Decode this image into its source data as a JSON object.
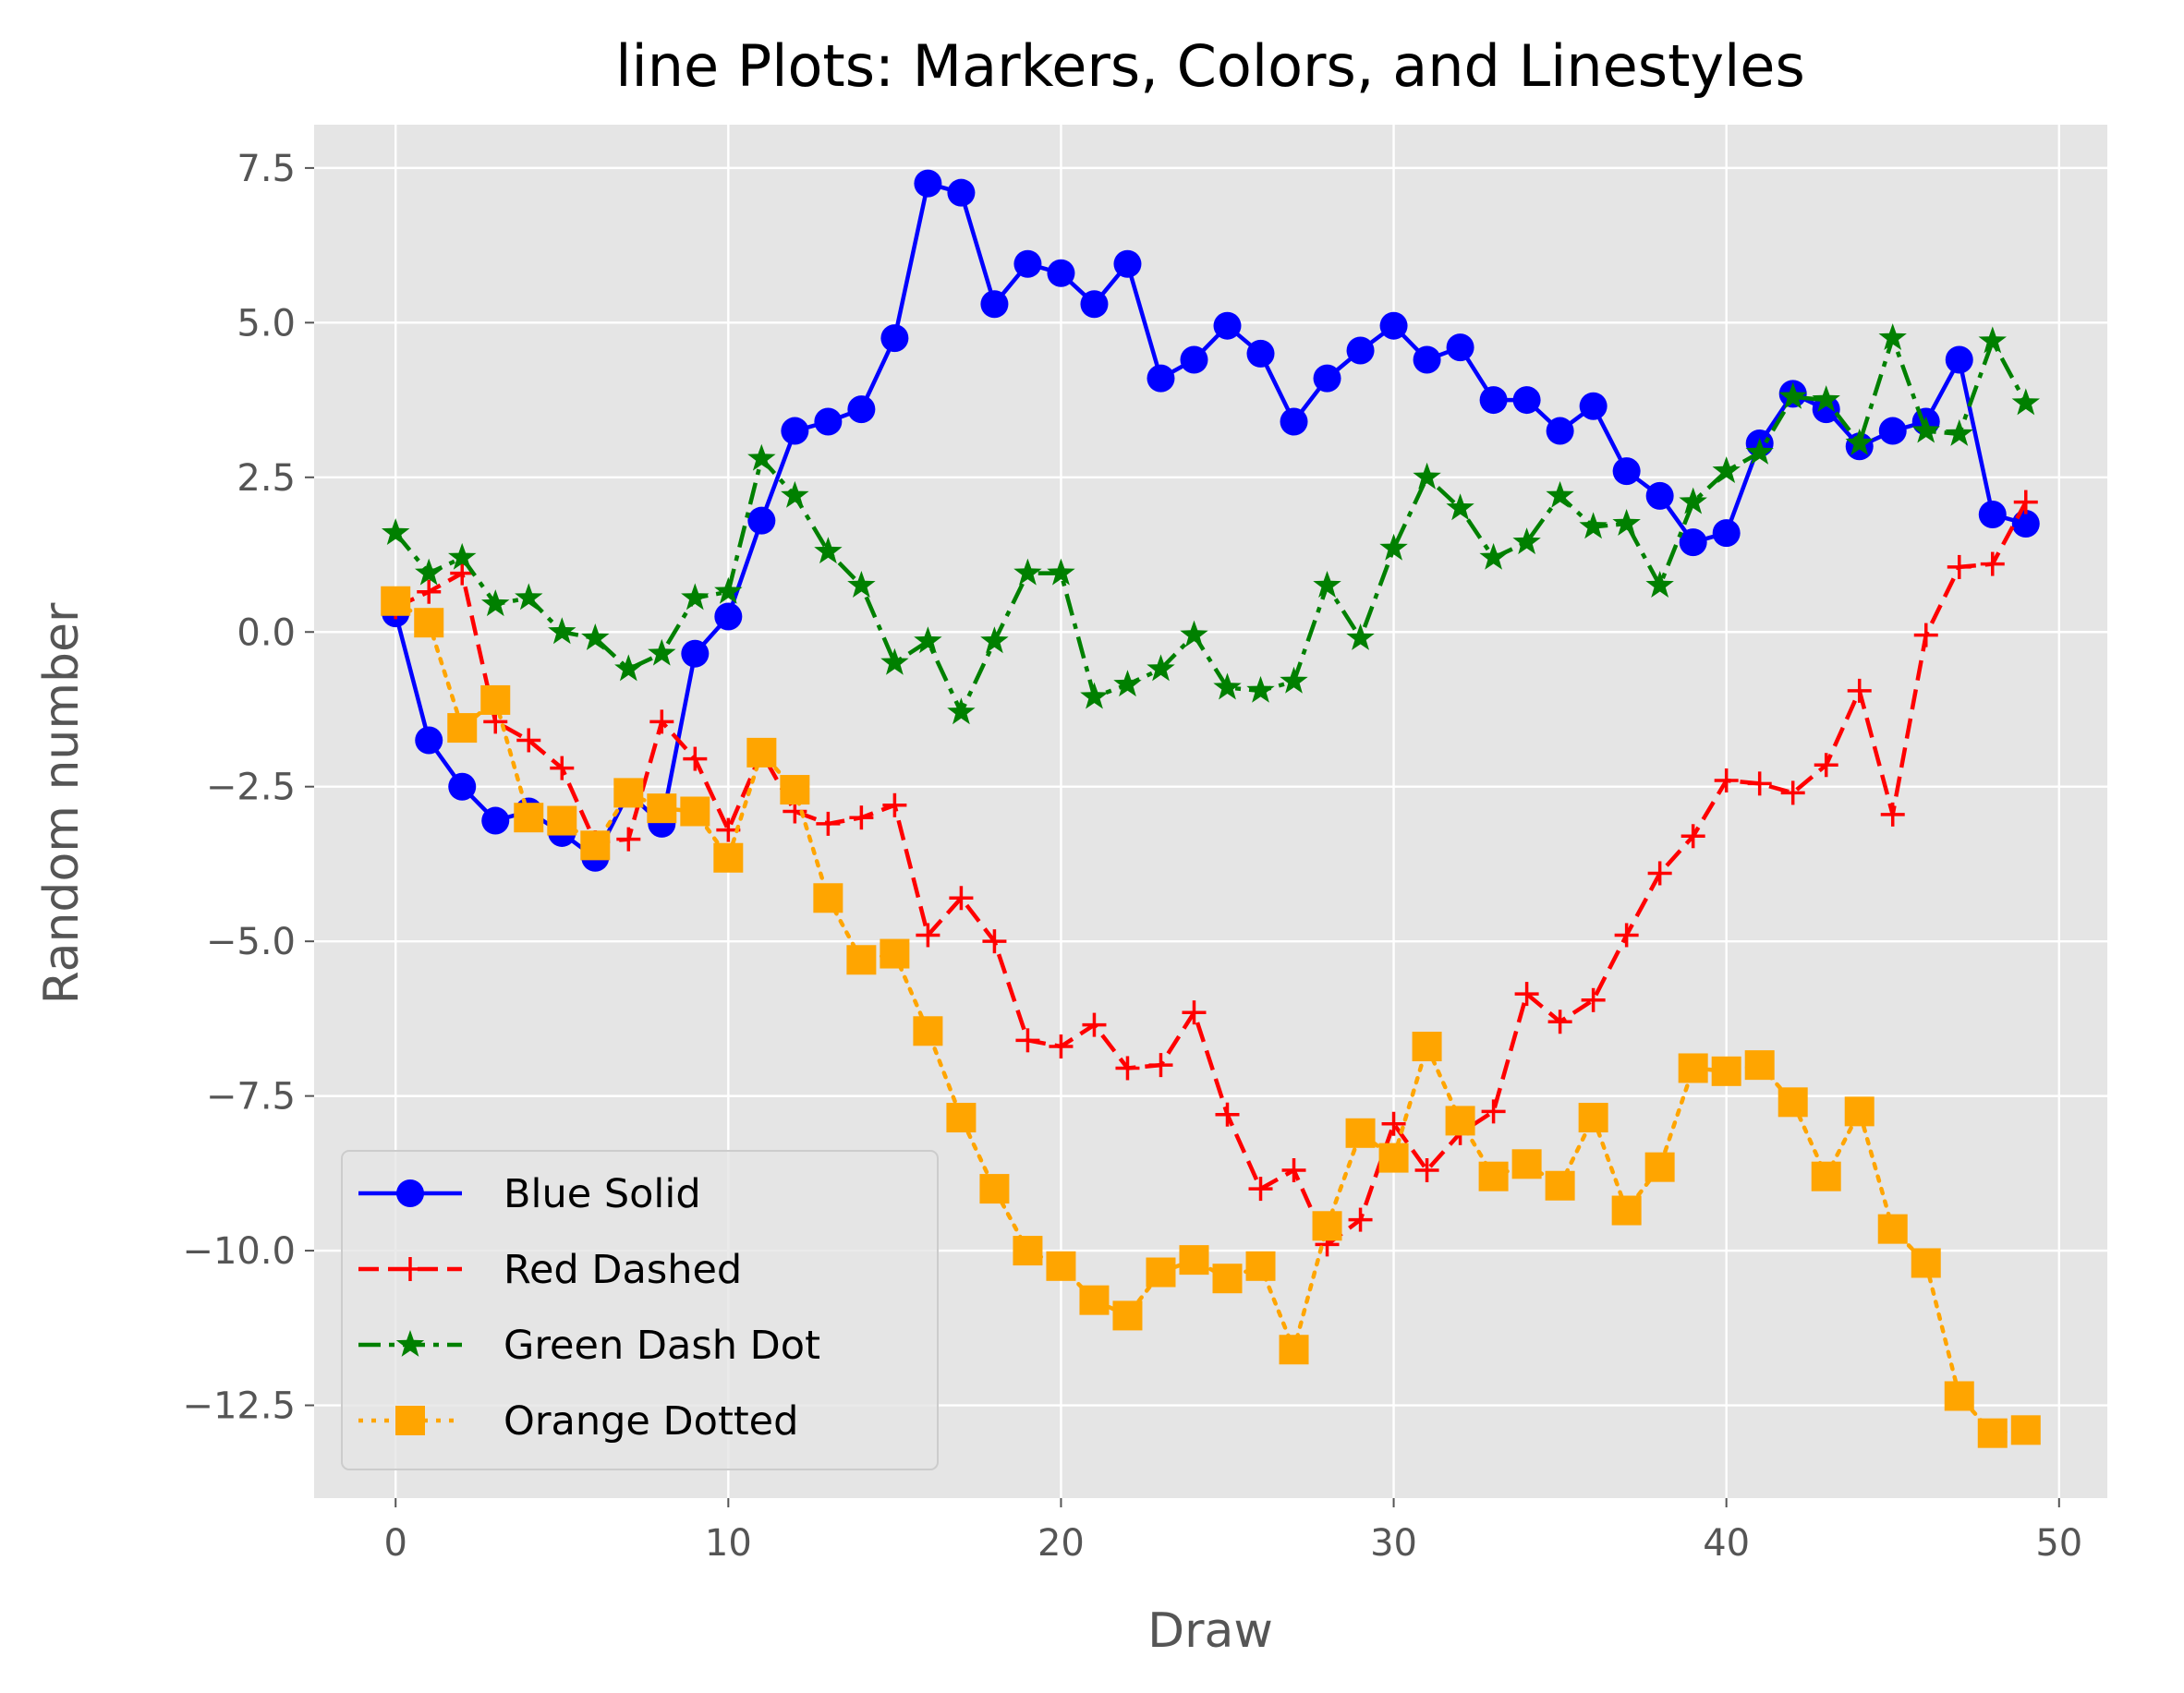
{
  "chart_data": {
    "type": "line",
    "title": "line Plots: Markers, Colors, and Linestyles",
    "xlabel": "Draw",
    "ylabel": "Random number",
    "xlim": [
      -2.45,
      51.45
    ],
    "ylim": [
      -14.0,
      8.2
    ],
    "xticks": [
      0,
      10,
      20,
      30,
      40,
      50
    ],
    "xtick_labels": [
      "0",
      "10",
      "20",
      "30",
      "40",
      "50"
    ],
    "yticks": [
      7.5,
      5.0,
      2.5,
      0.0,
      -2.5,
      -5.0,
      -7.5,
      -10.0,
      -12.5
    ],
    "ytick_labels": [
      "7.5",
      "5.0",
      "2.5",
      "0.0",
      "−2.5",
      "−5.0",
      "−7.5",
      "−10.0",
      "−12.5"
    ],
    "grid": true,
    "legend_position": "lower-left",
    "x": [
      0,
      1,
      2,
      3,
      4,
      5,
      6,
      7,
      8,
      9,
      10,
      11,
      12,
      13,
      14,
      15,
      16,
      17,
      18,
      19,
      20,
      21,
      22,
      23,
      24,
      25,
      26,
      27,
      28,
      29,
      30,
      31,
      32,
      33,
      34,
      35,
      36,
      37,
      38,
      39,
      40,
      41,
      42,
      43,
      44,
      45,
      46,
      47,
      48,
      49
    ],
    "series": [
      {
        "name": "Blue Solid",
        "color": "#0000ff",
        "linestyle": "solid",
        "marker": "circle",
        "values": [
          0.3,
          -1.75,
          -2.5,
          -3.05,
          -2.9,
          -3.25,
          -3.65,
          -2.6,
          -3.1,
          -0.35,
          0.25,
          1.8,
          3.25,
          3.4,
          3.6,
          4.75,
          7.25,
          7.1,
          5.3,
          5.95,
          5.8,
          5.3,
          5.95,
          4.1,
          4.4,
          4.95,
          4.5,
          3.4,
          4.1,
          4.55,
          4.95,
          4.4,
          4.6,
          3.75,
          3.75,
          3.25,
          3.65,
          2.6,
          2.2,
          1.45,
          1.6,
          3.05,
          3.85,
          3.6,
          3.0,
          3.25,
          3.4,
          4.4,
          1.9,
          1.75
        ]
      },
      {
        "name": "Red Dashed",
        "color": "#ff0000",
        "linestyle": "dashed",
        "marker": "plus",
        "values": [
          0.4,
          0.65,
          0.95,
          -1.45,
          -1.75,
          -2.2,
          -3.4,
          -3.35,
          -1.45,
          -2.05,
          -3.2,
          -1.95,
          -2.9,
          -3.1,
          -3.0,
          -2.8,
          -4.9,
          -4.3,
          -5.0,
          -6.6,
          -6.7,
          -6.35,
          -7.05,
          -7.0,
          -6.15,
          -7.8,
          -9.0,
          -8.7,
          -9.9,
          -9.5,
          -7.95,
          -8.7,
          -8.1,
          -7.75,
          -5.85,
          -6.3,
          -5.95,
          -4.9,
          -3.9,
          -3.3,
          -2.4,
          -2.45,
          -2.6,
          -2.15,
          -0.95,
          -2.95,
          -0.05,
          1.05,
          1.1,
          2.1
        ]
      },
      {
        "name": "Green Dash Dot",
        "color": "#008000",
        "linestyle": "dashdot",
        "marker": "star",
        "values": [
          1.6,
          0.95,
          1.2,
          0.45,
          0.55,
          0.0,
          -0.1,
          -0.6,
          -0.35,
          0.55,
          0.65,
          2.8,
          2.2,
          1.3,
          0.75,
          -0.5,
          -0.15,
          -1.3,
          -0.15,
          0.95,
          0.95,
          -1.05,
          -0.85,
          -0.6,
          -0.05,
          -0.9,
          -0.95,
          -0.8,
          0.75,
          -0.1,
          1.35,
          2.5,
          2.0,
          1.2,
          1.45,
          2.2,
          1.7,
          1.75,
          0.75,
          2.1,
          2.6,
          2.9,
          3.8,
          3.75,
          3.05,
          4.75,
          3.25,
          3.2,
          4.7,
          3.7
        ]
      },
      {
        "name": "Orange Dotted",
        "color": "#ffa500",
        "linestyle": "dotted",
        "marker": "square",
        "values": [
          0.5,
          0.15,
          -1.55,
          -1.1,
          -3.0,
          -3.05,
          -3.45,
          -2.6,
          -2.85,
          -2.9,
          -3.65,
          -1.95,
          -2.55,
          -4.3,
          -5.3,
          -5.2,
          -6.45,
          -7.85,
          -9.0,
          -10.0,
          -10.25,
          -10.8,
          -11.05,
          -10.35,
          -10.15,
          -10.45,
          -10.25,
          -11.6,
          -9.6,
          -8.1,
          -8.5,
          -6.7,
          -7.9,
          -8.8,
          -8.6,
          -8.95,
          -7.85,
          -9.35,
          -8.65,
          -7.05,
          -7.1,
          -7.0,
          -7.6,
          -8.8,
          -7.75,
          -9.65,
          -10.2,
          -12.35,
          -12.95,
          -12.9
        ]
      }
    ]
  }
}
